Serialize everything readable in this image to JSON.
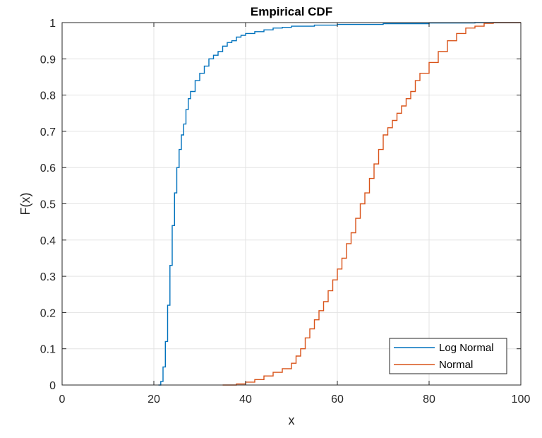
{
  "chart_data": {
    "type": "line",
    "title": "Empirical CDF",
    "xlabel": "x",
    "ylabel": "F(x)",
    "xlim": [
      0,
      100
    ],
    "ylim": [
      0,
      1
    ],
    "xticks": [
      "0",
      "20",
      "40",
      "60",
      "80",
      "100"
    ],
    "yticks": [
      "0",
      "0.1",
      "0.2",
      "0.3",
      "0.4",
      "0.5",
      "0.6",
      "0.7",
      "0.8",
      "0.9",
      "1"
    ],
    "grid": true,
    "legend_position": "bottom-right",
    "series": [
      {
        "name": "Log Normal",
        "color": "#0072BD",
        "x": [
          21.0,
          21.5,
          22.0,
          22.5,
          23.0,
          23.5,
          24.0,
          24.5,
          25.0,
          25.5,
          26.0,
          26.5,
          27.0,
          27.5,
          28.0,
          29.0,
          30.0,
          31.0,
          32.0,
          33.0,
          34.0,
          35.0,
          36.0,
          37.0,
          38.0,
          39.0,
          40.0,
          42.0,
          44.0,
          46.0,
          48.0,
          50.0,
          55.0,
          60.0,
          70.0,
          80.0,
          90.0,
          100.0
        ],
        "y": [
          0.0,
          0.01,
          0.05,
          0.12,
          0.22,
          0.33,
          0.44,
          0.53,
          0.6,
          0.65,
          0.69,
          0.72,
          0.76,
          0.79,
          0.81,
          0.84,
          0.86,
          0.88,
          0.9,
          0.91,
          0.92,
          0.935,
          0.945,
          0.95,
          0.96,
          0.965,
          0.97,
          0.975,
          0.98,
          0.985,
          0.987,
          0.99,
          0.993,
          0.995,
          0.997,
          0.999,
          1.0,
          1.0
        ]
      },
      {
        "name": "Normal",
        "color": "#D95319",
        "x": [
          35.0,
          38.0,
          40.0,
          42.0,
          44.0,
          46.0,
          48.0,
          50.0,
          51.0,
          52.0,
          53.0,
          54.0,
          55.0,
          56.0,
          57.0,
          58.0,
          59.0,
          60.0,
          61.0,
          62.0,
          63.0,
          64.0,
          65.0,
          66.0,
          67.0,
          68.0,
          69.0,
          70.0,
          71.0,
          72.0,
          73.0,
          74.0,
          75.0,
          76.0,
          77.0,
          78.0,
          80.0,
          82.0,
          84.0,
          86.0,
          88.0,
          90.0,
          92.0,
          94.0,
          100.0
        ],
        "y": [
          0.0,
          0.003,
          0.008,
          0.015,
          0.025,
          0.035,
          0.045,
          0.06,
          0.08,
          0.1,
          0.13,
          0.155,
          0.18,
          0.205,
          0.23,
          0.26,
          0.29,
          0.32,
          0.35,
          0.39,
          0.42,
          0.46,
          0.5,
          0.53,
          0.57,
          0.61,
          0.65,
          0.69,
          0.71,
          0.73,
          0.75,
          0.77,
          0.79,
          0.81,
          0.84,
          0.86,
          0.89,
          0.92,
          0.95,
          0.97,
          0.985,
          0.99,
          0.998,
          1.0,
          1.0
        ]
      }
    ]
  }
}
